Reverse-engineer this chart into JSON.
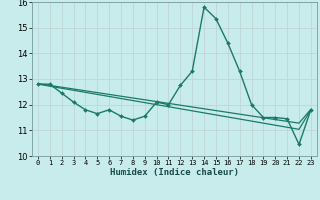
{
  "xlabel": "Humidex (Indice chaleur)",
  "bg_color": "#c8ecec",
  "grid_color": "#c0d8d8",
  "line_color": "#1a7a6a",
  "x": [
    0,
    1,
    2,
    3,
    4,
    5,
    6,
    7,
    8,
    9,
    10,
    11,
    12,
    13,
    14,
    15,
    16,
    17,
    18,
    19,
    20,
    21,
    22,
    23
  ],
  "humidex": [
    12.8,
    12.8,
    12.45,
    12.1,
    11.8,
    11.65,
    11.8,
    11.55,
    11.4,
    11.55,
    12.1,
    12.0,
    12.75,
    13.3,
    15.8,
    15.35,
    14.4,
    13.3,
    12.0,
    11.5,
    11.5,
    11.45,
    10.45,
    11.8
  ],
  "line1": [
    12.8,
    12.72,
    12.64,
    12.56,
    12.48,
    12.4,
    12.32,
    12.24,
    12.16,
    12.08,
    12.0,
    11.92,
    11.84,
    11.76,
    11.68,
    11.6,
    11.52,
    11.44,
    11.36,
    11.28,
    11.2,
    11.12,
    11.04,
    11.8
  ],
  "line2": [
    12.82,
    12.75,
    12.68,
    12.61,
    12.54,
    12.47,
    12.4,
    12.33,
    12.26,
    12.19,
    12.12,
    12.05,
    11.98,
    11.91,
    11.84,
    11.77,
    11.7,
    11.63,
    11.56,
    11.49,
    11.42,
    11.35,
    11.28,
    11.82
  ],
  "ylim": [
    10,
    16
  ],
  "xlim": [
    -0.5,
    23.5
  ],
  "yticks": [
    10,
    11,
    12,
    13,
    14,
    15,
    16
  ],
  "xticks": [
    0,
    1,
    2,
    3,
    4,
    5,
    6,
    7,
    8,
    9,
    10,
    11,
    12,
    13,
    14,
    15,
    16,
    17,
    18,
    19,
    20,
    21,
    22,
    23
  ]
}
